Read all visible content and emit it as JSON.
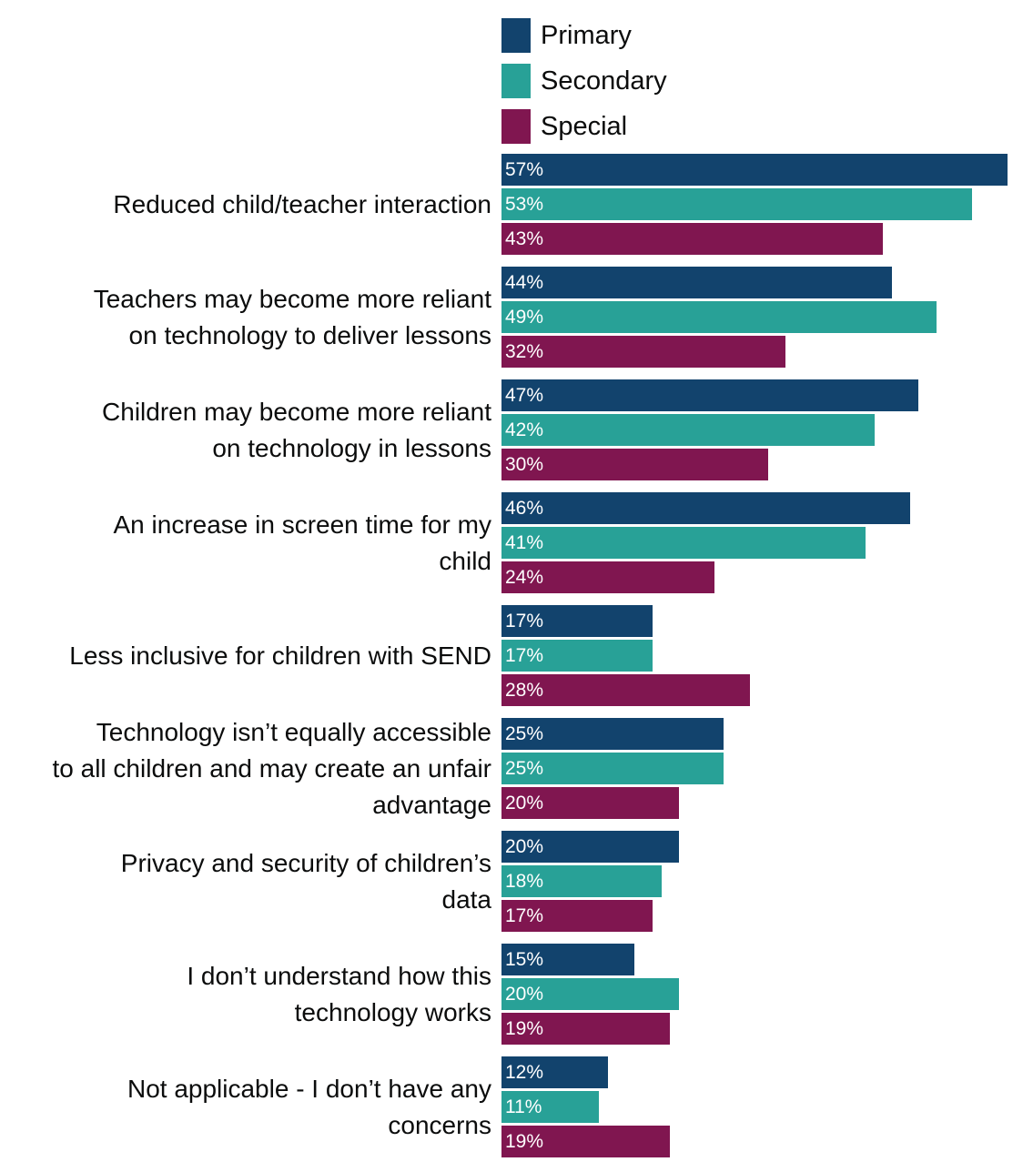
{
  "chart_data": {
    "type": "bar",
    "orientation": "horizontal",
    "title": "",
    "xlabel": "",
    "ylabel": "",
    "xlim": [
      0,
      57
    ],
    "legend_position": "top",
    "value_suffix": "%",
    "categories": [
      "Reduced child/teacher interaction",
      "Teachers may become more reliant on technology to deliver lessons",
      "Children may become more reliant on technology in lessons",
      "An increase in screen time for my child",
      "Less inclusive for children with SEND",
      "Technology isn’t equally accessible to all children and may create an unfair advantage",
      "Privacy and security of children’s data",
      "I don’t understand how this technology works",
      "Not applicable - I don’t have any concerns"
    ],
    "series": [
      {
        "name": "Primary",
        "color": "#12436d",
        "values": [
          57,
          44,
          47,
          46,
          17,
          25,
          20,
          15,
          12
        ]
      },
      {
        "name": "Secondary",
        "color": "#28a197",
        "values": [
          53,
          49,
          42,
          41,
          17,
          25,
          18,
          20,
          11
        ]
      },
      {
        "name": "Special",
        "color": "#801650",
        "values": [
          43,
          32,
          30,
          24,
          28,
          20,
          17,
          19,
          19
        ]
      }
    ]
  }
}
